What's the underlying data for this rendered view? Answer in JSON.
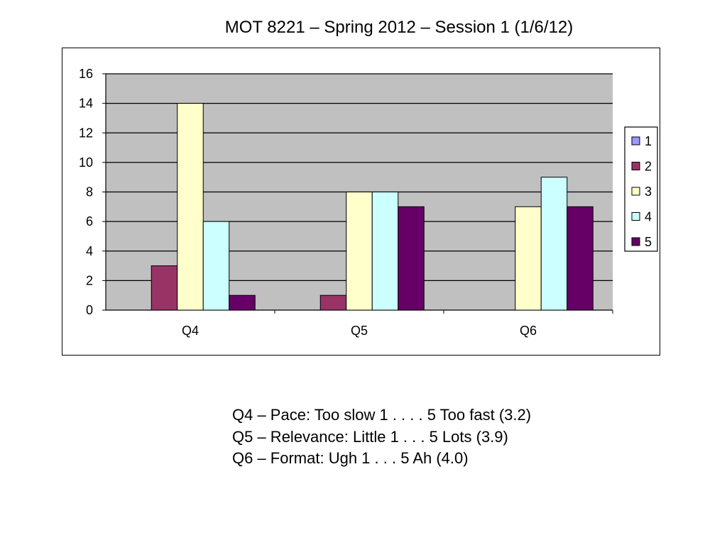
{
  "slide": {
    "title": "MOT 8221 – Spring 2012 – Session 1 (1/6/12)"
  },
  "chart_data": {
    "type": "bar",
    "categories": [
      "Q4",
      "Q5",
      "Q6"
    ],
    "series": [
      {
        "name": "1",
        "values": [
          0,
          0,
          0
        ],
        "color": "#9999ff"
      },
      {
        "name": "2",
        "values": [
          3,
          1,
          0
        ],
        "color": "#993366"
      },
      {
        "name": "3",
        "values": [
          14,
          8,
          7
        ],
        "color": "#ffffcc"
      },
      {
        "name": "4",
        "values": [
          6,
          8,
          9
        ],
        "color": "#ccffff"
      },
      {
        "name": "5",
        "values": [
          1,
          7,
          7
        ],
        "color": "#660066"
      }
    ],
    "ylim": [
      0,
      16
    ],
    "yticks": [
      0,
      2,
      4,
      6,
      8,
      10,
      12,
      14,
      16
    ],
    "grid": true,
    "plot_background": "#c0c0c0",
    "legend_position": "right"
  },
  "notes": [
    "Q4 – Pace: Too slow 1 . . . . 5 Too fast (3.2)",
    "Q5 – Relevance: Little 1 . . . 5 Lots (3.9)",
    "Q6 – Format: Ugh 1 . . . 5 Ah (4.0)"
  ]
}
